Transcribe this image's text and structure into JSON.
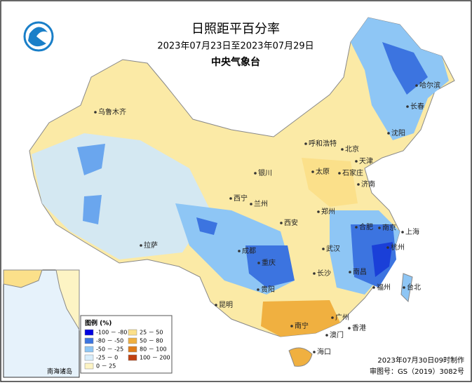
{
  "header": {
    "title": "日照距平百分率",
    "subtitle": "2023年07月23日至2023年07月29日",
    "agency": "中央气象台"
  },
  "legend": {
    "title": "图例 (%)",
    "items": [
      {
        "label": "-100 － -80",
        "color": "#0000e0"
      },
      {
        "label": "-80 － -50",
        "color": "#3c74e0"
      },
      {
        "label": "-50 － -25",
        "color": "#8ec6f5"
      },
      {
        "label": "-25 － 0",
        "color": "#d8eefc"
      },
      {
        "label": "0 － 25",
        "color": "#fdf4c4"
      },
      {
        "label": "25 － 50",
        "color": "#fbe08a"
      },
      {
        "label": "50 － 80",
        "color": "#f0b040"
      },
      {
        "label": "80 － 100",
        "color": "#e07b18"
      },
      {
        "label": "100 － 200",
        "color": "#c04010"
      }
    ]
  },
  "cities": [
    "乌鲁木齐",
    "哈尔滨",
    "长春",
    "沈阳",
    "呼和浩特",
    "北京",
    "天津",
    "银川",
    "太原",
    "石家庄",
    "西宁",
    "兰州",
    "济南",
    "郑州",
    "西安",
    "合肥",
    "南京",
    "上海",
    "拉萨",
    "成都",
    "武汉",
    "杭州",
    "重庆",
    "长沙",
    "南昌",
    "福州",
    "台北",
    "贵阳",
    "昆明",
    "广州",
    "南宁",
    "香港",
    "澳门",
    "海口"
  ],
  "inset": {
    "label": "南海诸岛"
  },
  "footer": {
    "made": "2023年07月30日09时制作",
    "approval": "审图号：GS（2019）3082号"
  }
}
